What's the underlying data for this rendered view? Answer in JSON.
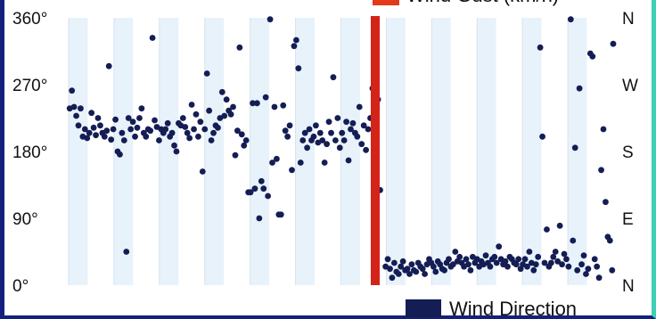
{
  "chart_data": {
    "type": "scatter",
    "title": "",
    "xlabel": "",
    "ylabel": "",
    "ylim": [
      0,
      360
    ],
    "xlim": [
      0,
      100
    ],
    "y_ticks": [
      {
        "value": 0,
        "label": "0°"
      },
      {
        "value": 90,
        "label": "90°"
      },
      {
        "value": 180,
        "label": "180°"
      },
      {
        "value": 270,
        "label": "270°"
      },
      {
        "value": 360,
        "label": "360°"
      }
    ],
    "y2_ticks": [
      {
        "value": 0,
        "label": "N"
      },
      {
        "value": 90,
        "label": "E"
      },
      {
        "value": 180,
        "label": "S"
      },
      {
        "value": 270,
        "label": "W"
      },
      {
        "value": 360,
        "label": "N"
      }
    ],
    "grid": "vertical alternating bands",
    "legend": [
      {
        "name": "Wind Gust (km/h)",
        "color": "#e5391b",
        "placement": "top-right"
      },
      {
        "name": "Wind Direction",
        "color": "#141d54",
        "placement": "bottom-right"
      }
    ],
    "band_count": 12,
    "gust_bar": {
      "x": 56.3,
      "value": 360,
      "color": "#d42318"
    },
    "series": [
      {
        "name": "Wind Direction",
        "color": "#141d54",
        "points": [
          [
            0.2,
            238
          ],
          [
            0.6,
            262
          ],
          [
            1.0,
            240
          ],
          [
            1.4,
            228
          ],
          [
            1.8,
            215
          ],
          [
            2.2,
            238
          ],
          [
            2.6,
            200
          ],
          [
            3.0,
            210
          ],
          [
            3.4,
            198
          ],
          [
            3.8,
            205
          ],
          [
            4.2,
            232
          ],
          [
            4.6,
            212
          ],
          [
            5.0,
            202
          ],
          [
            5.4,
            225
          ],
          [
            5.8,
            215
          ],
          [
            6.2,
            205
          ],
          [
            6.6,
            200
          ],
          [
            7.0,
            208
          ],
          [
            7.4,
            295
          ],
          [
            7.8,
            196
          ],
          [
            8.2,
            210
          ],
          [
            8.6,
            223
          ],
          [
            9.0,
            180
          ],
          [
            9.4,
            176
          ],
          [
            9.8,
            205
          ],
          [
            10.2,
            195
          ],
          [
            10.6,
            45
          ],
          [
            11.0,
            225
          ],
          [
            11.4,
            210
          ],
          [
            11.8,
            220
          ],
          [
            12.2,
            200
          ],
          [
            12.6,
            212
          ],
          [
            13.0,
            225
          ],
          [
            13.4,
            238
          ],
          [
            13.8,
            205
          ],
          [
            14.2,
            200
          ],
          [
            14.6,
            210
          ],
          [
            15.0,
            208
          ],
          [
            15.4,
            333
          ],
          [
            15.8,
            222
          ],
          [
            16.2,
            213
          ],
          [
            16.6,
            195
          ],
          [
            17.0,
            210
          ],
          [
            17.4,
            205
          ],
          [
            17.8,
            210
          ],
          [
            18.2,
            218
          ],
          [
            18.6,
            200
          ],
          [
            19.0,
            205
          ],
          [
            19.4,
            188
          ],
          [
            19.8,
            180
          ],
          [
            20.2,
            218
          ],
          [
            20.6,
            215
          ],
          [
            21.0,
            225
          ],
          [
            21.4,
            213
          ],
          [
            21.8,
            205
          ],
          [
            22.2,
            198
          ],
          [
            22.6,
            243
          ],
          [
            23.0,
            210
          ],
          [
            23.4,
            230
          ],
          [
            23.8,
            200
          ],
          [
            24.2,
            220
          ],
          [
            24.6,
            153
          ],
          [
            25.0,
            210
          ],
          [
            25.4,
            285
          ],
          [
            25.8,
            235
          ],
          [
            26.2,
            195
          ],
          [
            26.6,
            205
          ],
          [
            27.0,
            215
          ],
          [
            27.4,
            212
          ],
          [
            27.8,
            225
          ],
          [
            28.2,
            260
          ],
          [
            28.6,
            228
          ],
          [
            29.0,
            250
          ],
          [
            29.4,
            235
          ],
          [
            29.8,
            230
          ],
          [
            30.2,
            240
          ],
          [
            30.6,
            175
          ],
          [
            31.0,
            208
          ],
          [
            31.4,
            320
          ],
          [
            31.8,
            203
          ],
          [
            32.2,
            188
          ],
          [
            32.6,
            195
          ],
          [
            33.0,
            125
          ],
          [
            33.4,
            125
          ],
          [
            33.8,
            245
          ],
          [
            34.2,
            130
          ],
          [
            34.6,
            245
          ],
          [
            35.0,
            90
          ],
          [
            35.4,
            140
          ],
          [
            35.8,
            130
          ],
          [
            36.2,
            253
          ],
          [
            36.6,
            120
          ],
          [
            37.0,
            358
          ],
          [
            37.4,
            165
          ],
          [
            37.8,
            240
          ],
          [
            38.2,
            170
          ],
          [
            38.6,
            95
          ],
          [
            39.0,
            95
          ],
          [
            39.4,
            242
          ],
          [
            39.8,
            208
          ],
          [
            40.2,
            200
          ],
          [
            40.6,
            215
          ],
          [
            41.0,
            155
          ],
          [
            41.4,
            322
          ],
          [
            41.8,
            330
          ],
          [
            42.2,
            292
          ],
          [
            42.6,
            165
          ],
          [
            43.0,
            195
          ],
          [
            43.4,
            205
          ],
          [
            43.8,
            185
          ],
          [
            44.2,
            210
          ],
          [
            44.6,
            195
          ],
          [
            45.0,
            200
          ],
          [
            45.4,
            215
          ],
          [
            45.8,
            192
          ],
          [
            46.2,
            205
          ],
          [
            46.6,
            195
          ],
          [
            47.0,
            165
          ],
          [
            47.4,
            190
          ],
          [
            47.8,
            220
          ],
          [
            48.2,
            205
          ],
          [
            48.6,
            280
          ],
          [
            49.0,
            195
          ],
          [
            49.4,
            225
          ],
          [
            49.8,
            185
          ],
          [
            50.2,
            205
          ],
          [
            50.6,
            195
          ],
          [
            51.0,
            220
          ],
          [
            51.4,
            168
          ],
          [
            51.8,
            210
          ],
          [
            52.2,
            218
          ],
          [
            52.6,
            205
          ],
          [
            53.0,
            200
          ],
          [
            53.4,
            240
          ],
          [
            53.8,
            190
          ],
          [
            54.2,
            215
          ],
          [
            54.6,
            182
          ],
          [
            55.0,
            210
          ],
          [
            55.4,
            225
          ],
          [
            55.8,
            265
          ],
          [
            56.2,
            255
          ],
          [
            56.6,
            240
          ],
          [
            56.8,
            250
          ],
          [
            57.2,
            128
          ],
          [
            58.2,
            25
          ],
          [
            58.6,
            35
          ],
          [
            59.0,
            22
          ],
          [
            59.4,
            10
          ],
          [
            59.8,
            30
          ],
          [
            60.2,
            18
          ],
          [
            60.6,
            15
          ],
          [
            61.0,
            25
          ],
          [
            61.4,
            32
          ],
          [
            61.8,
            20
          ],
          [
            62.2,
            22
          ],
          [
            62.6,
            15
          ],
          [
            63.0,
            28
          ],
          [
            63.4,
            20
          ],
          [
            63.8,
            18
          ],
          [
            64.2,
            30
          ],
          [
            64.6,
            25
          ],
          [
            65.0,
            22
          ],
          [
            65.4,
            15
          ],
          [
            65.8,
            28
          ],
          [
            66.2,
            35
          ],
          [
            66.6,
            30
          ],
          [
            67.0,
            25
          ],
          [
            67.4,
            18
          ],
          [
            67.8,
            32
          ],
          [
            68.2,
            28
          ],
          [
            68.6,
            22
          ],
          [
            69.0,
            20
          ],
          [
            69.4,
            30
          ],
          [
            69.8,
            35
          ],
          [
            70.2,
            25
          ],
          [
            70.6,
            28
          ],
          [
            71.0,
            45
          ],
          [
            71.4,
            32
          ],
          [
            71.8,
            38
          ],
          [
            72.2,
            30
          ],
          [
            72.6,
            25
          ],
          [
            73.0,
            35
          ],
          [
            73.4,
            28
          ],
          [
            73.8,
            20
          ],
          [
            74.2,
            38
          ],
          [
            74.6,
            30
          ],
          [
            75.0,
            35
          ],
          [
            75.4,
            25
          ],
          [
            75.8,
            32
          ],
          [
            76.2,
            28
          ],
          [
            76.6,
            40
          ],
          [
            77.0,
            30
          ],
          [
            77.4,
            25
          ],
          [
            77.8,
            35
          ],
          [
            78.2,
            38
          ],
          [
            78.6,
            30
          ],
          [
            79.0,
            52
          ],
          [
            79.4,
            35
          ],
          [
            79.8,
            28
          ],
          [
            80.2,
            32
          ],
          [
            80.6,
            25
          ],
          [
            81.0,
            38
          ],
          [
            81.4,
            35
          ],
          [
            81.8,
            30
          ],
          [
            82.2,
            28
          ],
          [
            82.6,
            35
          ],
          [
            83.0,
            22
          ],
          [
            83.4,
            28
          ],
          [
            83.8,
            35
          ],
          [
            84.2,
            25
          ],
          [
            84.6,
            45
          ],
          [
            85.0,
            30
          ],
          [
            85.4,
            20
          ],
          [
            85.8,
            28
          ],
          [
            86.2,
            38
          ],
          [
            86.6,
            320
          ],
          [
            87.0,
            200
          ],
          [
            87.4,
            30
          ],
          [
            87.8,
            75
          ],
          [
            88.2,
            25
          ],
          [
            88.6,
            30
          ],
          [
            89.0,
            38
          ],
          [
            89.4,
            45
          ],
          [
            89.8,
            32
          ],
          [
            90.2,
            80
          ],
          [
            90.6,
            28
          ],
          [
            91.0,
            42
          ],
          [
            91.4,
            35
          ],
          [
            91.8,
            25
          ],
          [
            92.2,
            358
          ],
          [
            92.6,
            60
          ],
          [
            93.0,
            185
          ],
          [
            93.4,
            20
          ],
          [
            93.8,
            265
          ],
          [
            94.2,
            28
          ],
          [
            94.6,
            40
          ],
          [
            95.0,
            15
          ],
          [
            95.4,
            22
          ],
          [
            95.8,
            312
          ],
          [
            96.2,
            308
          ],
          [
            96.6,
            35
          ],
          [
            97.0,
            25
          ],
          [
            97.4,
            10
          ],
          [
            97.8,
            155
          ],
          [
            98.2,
            210
          ],
          [
            98.6,
            112
          ],
          [
            99.0,
            65
          ],
          [
            99.4,
            60
          ],
          [
            99.8,
            20
          ],
          [
            100.0,
            325
          ]
        ]
      }
    ]
  }
}
